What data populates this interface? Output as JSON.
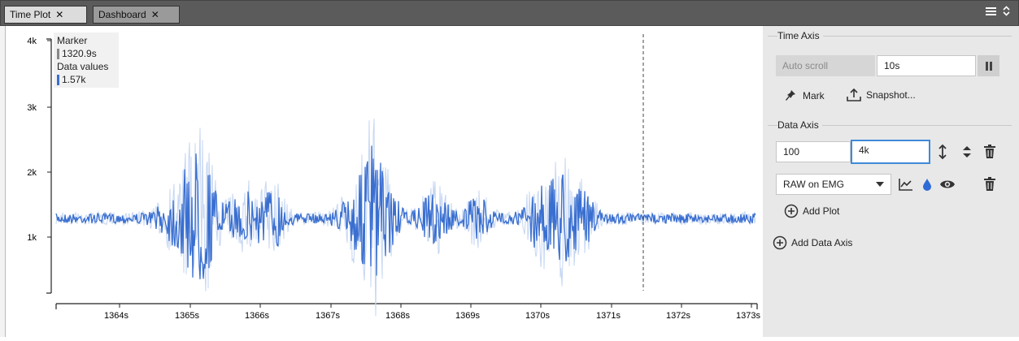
{
  "tabs": [
    {
      "label": "Time Plot",
      "active": true
    },
    {
      "label": "Dashboard",
      "active": false
    }
  ],
  "tab_menu": {
    "icons": [
      "hamburger-menu-icon",
      "chevron-updown-icon"
    ]
  },
  "plot": {
    "y_ticks": [
      "4k",
      "3k",
      "2k",
      "1k"
    ],
    "x_ticks": [
      "1364s",
      "1365s",
      "1366s",
      "1367s",
      "1368s",
      "1369s",
      "1370s",
      "1371s",
      "1372s",
      "1373s"
    ],
    "marker": {
      "title": "Marker",
      "time": "1320.9s",
      "data_title": "Data values",
      "value": "1.57k",
      "marker_color": "#888888",
      "series_color": "#3a6fd0"
    }
  },
  "panel": {
    "time_axis": {
      "title": "Time Axis",
      "autoscroll_label": "Auto scroll",
      "window_value": "10s",
      "mark_label": "Mark",
      "snapshot_label": "Snapshot..."
    },
    "data_axis": {
      "title": "Data Axis",
      "min_value": "100",
      "max_value": "4k",
      "signal_select": "RAW on EMG",
      "add_plot_label": "Add Plot",
      "add_axis_label": "Add Data Axis"
    }
  },
  "colors": {
    "signal": "#3a6fd0",
    "signal_envelope": "#c5d6f2",
    "panel_bg": "#e8e8e8",
    "tabbar_bg": "#5b5b5b",
    "focus": "#3f8ad8"
  }
}
